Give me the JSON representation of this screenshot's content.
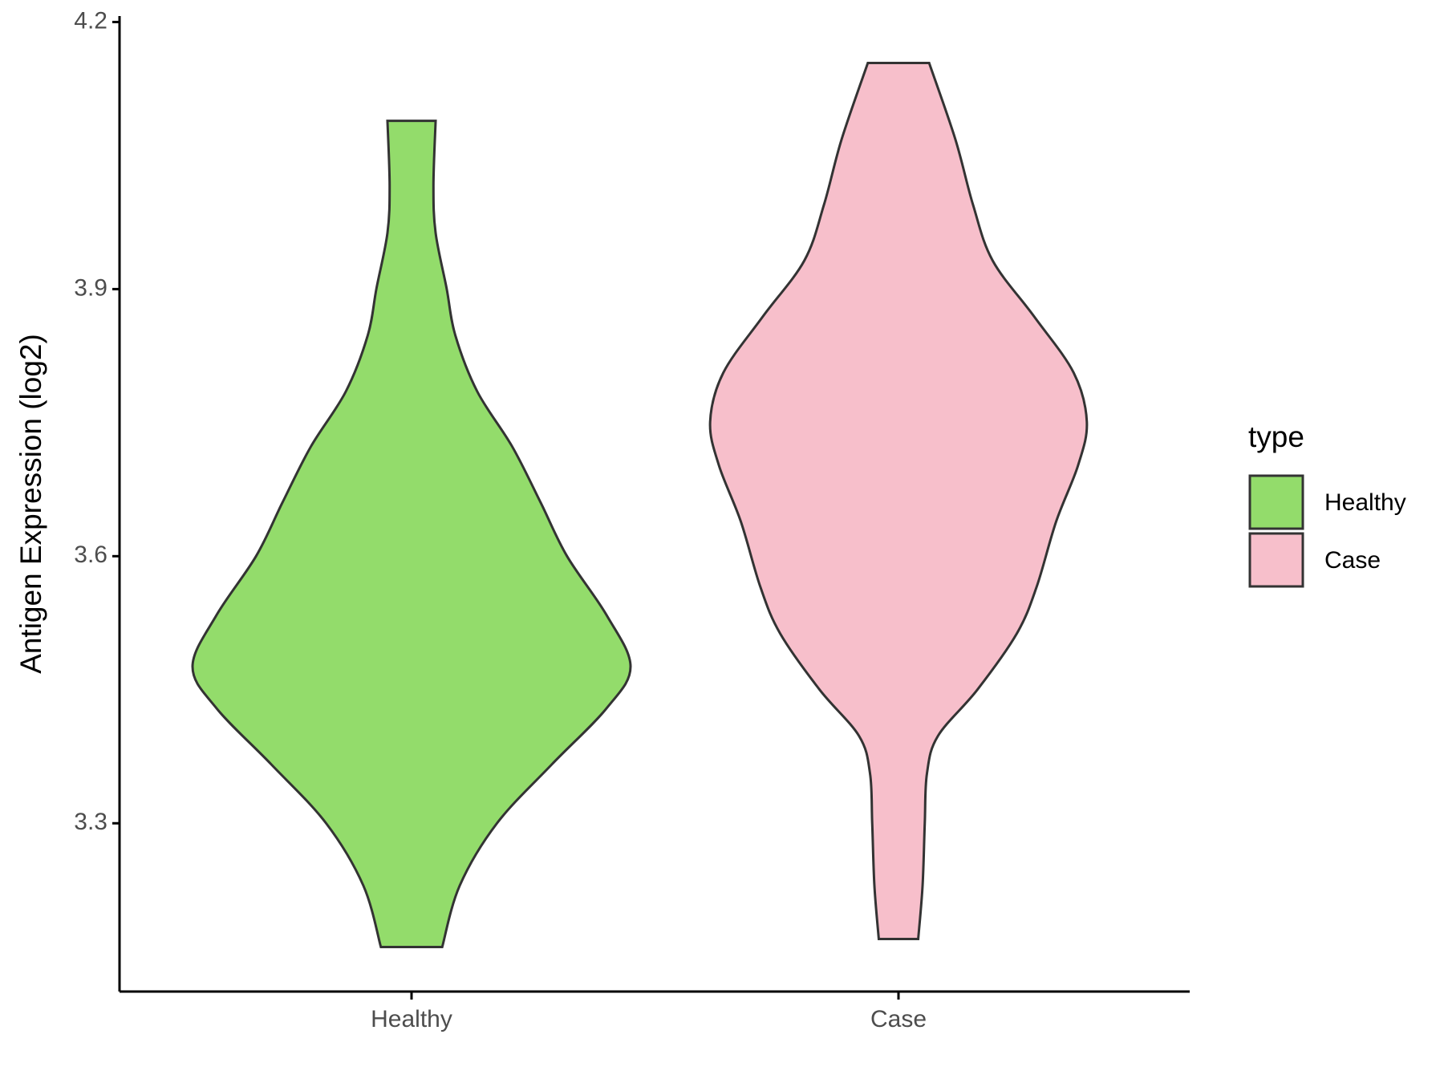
{
  "chart_data": {
    "type": "violin",
    "y_label": "Antigen Expression (log2)",
    "categories": [
      "Healthy",
      "Case"
    ],
    "legend_title": "type",
    "legend_position": "right",
    "ylim": [
      3.111,
      4.204
    ],
    "yticks": [
      3.3,
      3.6,
      3.9,
      4.2
    ],
    "series": [
      {
        "name": "Healthy",
        "color": "#93dc6b",
        "y": [
          3.161,
          3.23,
          3.3,
          3.366,
          3.429,
          3.476,
          3.534,
          3.6,
          3.66,
          3.723,
          3.785,
          3.848,
          3.901,
          3.963,
          4.016,
          4.089
        ],
        "density": [
          0.14,
          0.22,
          0.39,
          0.64,
          0.89,
          1.0,
          0.89,
          0.71,
          0.59,
          0.46,
          0.3,
          0.2,
          0.16,
          0.11,
          0.1,
          0.11
        ]
      },
      {
        "name": "Case",
        "color": "#f7bfcb",
        "y": [
          3.17,
          3.23,
          3.3,
          3.356,
          3.398,
          3.45,
          3.513,
          3.565,
          3.639,
          3.702,
          3.751,
          3.806,
          3.869,
          3.932,
          3.995,
          4.068,
          4.154
        ],
        "density": [
          0.09,
          0.11,
          0.12,
          0.13,
          0.18,
          0.36,
          0.54,
          0.63,
          0.72,
          0.82,
          0.86,
          0.8,
          0.62,
          0.43,
          0.34,
          0.26,
          0.14
        ]
      }
    ]
  }
}
